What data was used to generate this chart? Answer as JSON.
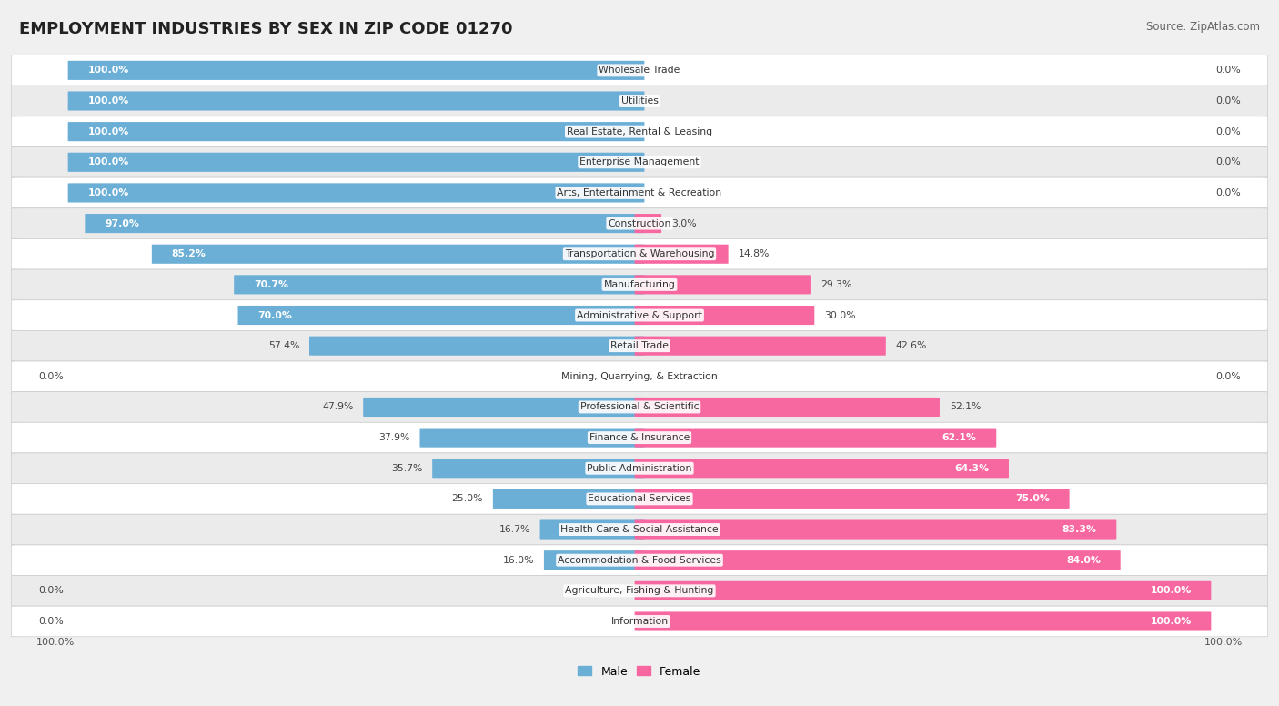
{
  "title": "EMPLOYMENT INDUSTRIES BY SEX IN ZIP CODE 01270",
  "source": "Source: ZipAtlas.com",
  "male_color": "#6baed6",
  "female_color": "#f768a1",
  "categories": [
    "Wholesale Trade",
    "Utilities",
    "Real Estate, Rental & Leasing",
    "Enterprise Management",
    "Arts, Entertainment & Recreation",
    "Construction",
    "Transportation & Warehousing",
    "Manufacturing",
    "Administrative & Support",
    "Retail Trade",
    "Mining, Quarrying, & Extraction",
    "Professional & Scientific",
    "Finance & Insurance",
    "Public Administration",
    "Educational Services",
    "Health Care & Social Assistance",
    "Accommodation & Food Services",
    "Agriculture, Fishing & Hunting",
    "Information"
  ],
  "male_pct": [
    100.0,
    100.0,
    100.0,
    100.0,
    100.0,
    97.0,
    85.2,
    70.7,
    70.0,
    57.4,
    0.0,
    47.9,
    37.9,
    35.7,
    25.0,
    16.7,
    16.0,
    0.0,
    0.0
  ],
  "female_pct": [
    0.0,
    0.0,
    0.0,
    0.0,
    0.0,
    3.0,
    14.8,
    29.3,
    30.0,
    42.6,
    0.0,
    52.1,
    62.1,
    64.3,
    75.0,
    83.3,
    84.0,
    100.0,
    100.0
  ]
}
